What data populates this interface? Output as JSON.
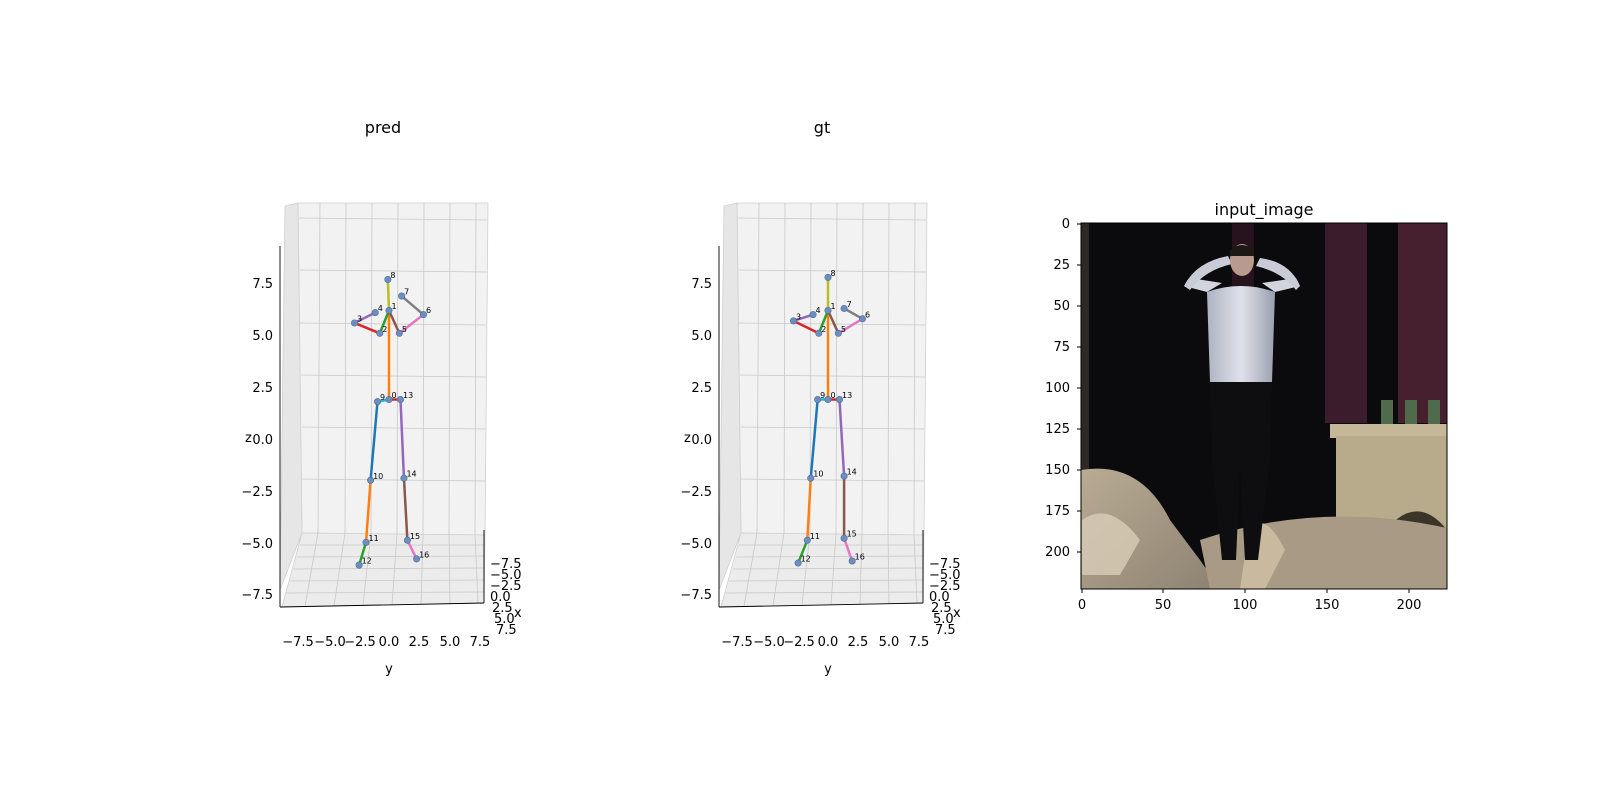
{
  "chart_data": [
    {
      "type": "scatter3d",
      "title": "pred",
      "xlabel": "x",
      "ylabel": "y",
      "zlabel": "z",
      "y_ticks": [
        "−7.5",
        "−5.0",
        "−2.5",
        "0.0",
        "2.5",
        "5.0",
        "7.5"
      ],
      "x_ticks": [
        "−7.5",
        "−5.0",
        "−2.5",
        "0.0",
        "2.5",
        "5.0",
        "7.5"
      ],
      "z_ticks": [
        "7.5",
        "5.0",
        "2.5",
        "0.0",
        "−2.5",
        "−5.0",
        "−7.5"
      ],
      "zlim": [
        -8,
        9
      ],
      "joints": [
        {
          "id": "0",
          "y": 0.0,
          "z": 2.1
        },
        {
          "id": "1",
          "y": 0.0,
          "z": 6.4
        },
        {
          "id": "2",
          "y": -0.8,
          "z": 5.3
        },
        {
          "id": "3",
          "y": -3.0,
          "z": 5.8
        },
        {
          "id": "4",
          "y": -1.2,
          "z": 6.3
        },
        {
          "id": "5",
          "y": 0.9,
          "z": 5.3
        },
        {
          "id": "6",
          "y": 3.0,
          "z": 6.2
        },
        {
          "id": "7",
          "y": 1.1,
          "z": 7.1
        },
        {
          "id": "8",
          "y": -0.1,
          "z": 7.9
        },
        {
          "id": "9",
          "y": -1.0,
          "z": 2.0
        },
        {
          "id": "10",
          "y": -1.6,
          "z": -1.8
        },
        {
          "id": "11",
          "y": -2.0,
          "z": -4.8
        },
        {
          "id": "12",
          "y": -2.6,
          "z": -5.9
        },
        {
          "id": "13",
          "y": 1.0,
          "z": 2.1
        },
        {
          "id": "14",
          "y": 1.3,
          "z": -1.7
        },
        {
          "id": "15",
          "y": 1.6,
          "z": -4.7
        },
        {
          "id": "16",
          "y": 2.4,
          "z": -5.6
        }
      ],
      "bones": [
        {
          "from": "0",
          "to": "1",
          "color": "#ff7f0e"
        },
        {
          "from": "1",
          "to": "2",
          "color": "#2ca02c"
        },
        {
          "from": "2",
          "to": "3",
          "color": "#d62728"
        },
        {
          "from": "3",
          "to": "4",
          "color": "#9467bd"
        },
        {
          "from": "1",
          "to": "5",
          "color": "#8c564b"
        },
        {
          "from": "5",
          "to": "6",
          "color": "#e377c2"
        },
        {
          "from": "6",
          "to": "7",
          "color": "#7f7f7f"
        },
        {
          "from": "1",
          "to": "8",
          "color": "#bcbd22"
        },
        {
          "from": "0",
          "to": "9",
          "color": "#17becf"
        },
        {
          "from": "9",
          "to": "10",
          "color": "#1f77b4"
        },
        {
          "from": "10",
          "to": "11",
          "color": "#ff7f0e"
        },
        {
          "from": "11",
          "to": "12",
          "color": "#2ca02c"
        },
        {
          "from": "0",
          "to": "13",
          "color": "#d62728"
        },
        {
          "from": "13",
          "to": "14",
          "color": "#9467bd"
        },
        {
          "from": "14",
          "to": "15",
          "color": "#8c564b"
        },
        {
          "from": "15",
          "to": "16",
          "color": "#e377c2"
        }
      ]
    },
    {
      "type": "scatter3d",
      "title": "gt",
      "xlabel": "x",
      "ylabel": "y",
      "zlabel": "z",
      "y_ticks": [
        "−7.5",
        "−5.0",
        "−2.5",
        "0.0",
        "2.5",
        "5.0",
        "7.5"
      ],
      "x_ticks": [
        "−7.5",
        "−5.0",
        "−2.5",
        "0.0",
        "2.5",
        "5.0",
        "7.5"
      ],
      "z_ticks": [
        "7.5",
        "5.0",
        "2.5",
        "0.0",
        "−2.5",
        "−5.0",
        "−7.5"
      ],
      "zlim": [
        -8,
        9
      ],
      "joints": [
        {
          "id": "0",
          "y": 0.0,
          "z": 2.1
        },
        {
          "id": "1",
          "y": 0.0,
          "z": 6.4
        },
        {
          "id": "2",
          "y": -0.8,
          "z": 5.3
        },
        {
          "id": "3",
          "y": -3.0,
          "z": 5.9
        },
        {
          "id": "4",
          "y": -1.3,
          "z": 6.2
        },
        {
          "id": "5",
          "y": 0.9,
          "z": 5.3
        },
        {
          "id": "6",
          "y": 3.0,
          "z": 6.0
        },
        {
          "id": "7",
          "y": 1.4,
          "z": 6.5
        },
        {
          "id": "8",
          "y": 0.0,
          "z": 8.0
        },
        {
          "id": "9",
          "y": -0.9,
          "z": 2.1
        },
        {
          "id": "10",
          "y": -1.5,
          "z": -1.7
        },
        {
          "id": "11",
          "y": -1.8,
          "z": -4.7
        },
        {
          "id": "12",
          "y": -2.6,
          "z": -5.8
        },
        {
          "id": "13",
          "y": 1.0,
          "z": 2.1
        },
        {
          "id": "14",
          "y": 1.4,
          "z": -1.6
        },
        {
          "id": "15",
          "y": 1.4,
          "z": -4.6
        },
        {
          "id": "16",
          "y": 2.1,
          "z": -5.7
        }
      ],
      "bones": [
        {
          "from": "0",
          "to": "1",
          "color": "#ff7f0e"
        },
        {
          "from": "1",
          "to": "2",
          "color": "#2ca02c"
        },
        {
          "from": "2",
          "to": "3",
          "color": "#d62728"
        },
        {
          "from": "3",
          "to": "4",
          "color": "#9467bd"
        },
        {
          "from": "1",
          "to": "5",
          "color": "#8c564b"
        },
        {
          "from": "5",
          "to": "6",
          "color": "#e377c2"
        },
        {
          "from": "6",
          "to": "7",
          "color": "#7f7f7f"
        },
        {
          "from": "1",
          "to": "8",
          "color": "#bcbd22"
        },
        {
          "from": "0",
          "to": "9",
          "color": "#17becf"
        },
        {
          "from": "9",
          "to": "10",
          "color": "#1f77b4"
        },
        {
          "from": "10",
          "to": "11",
          "color": "#ff7f0e"
        },
        {
          "from": "11",
          "to": "12",
          "color": "#2ca02c"
        },
        {
          "from": "0",
          "to": "13",
          "color": "#d62728"
        },
        {
          "from": "13",
          "to": "14",
          "color": "#9467bd"
        },
        {
          "from": "14",
          "to": "15",
          "color": "#8c564b"
        },
        {
          "from": "15",
          "to": "16",
          "color": "#e377c2"
        }
      ]
    },
    {
      "type": "image",
      "title": "input_image",
      "x_ticks": [
        "0",
        "50",
        "100",
        "150",
        "200"
      ],
      "y_ticks": [
        "0",
        "25",
        "50",
        "75",
        "100",
        "125",
        "150",
        "175",
        "200"
      ],
      "xlim": [
        0,
        224
      ],
      "ylim": [
        224,
        0
      ]
    }
  ],
  "colors": {
    "pane": "#f2f2f2",
    "grid": "#c8c8c8",
    "joint_fill": "#6d8fc0",
    "photo_background": "#0b0a0d",
    "curtain": "#3a1c2c",
    "shirt": "#c9ccd6",
    "fireplace": "#b8ab8b",
    "bed": "#a89a84"
  }
}
